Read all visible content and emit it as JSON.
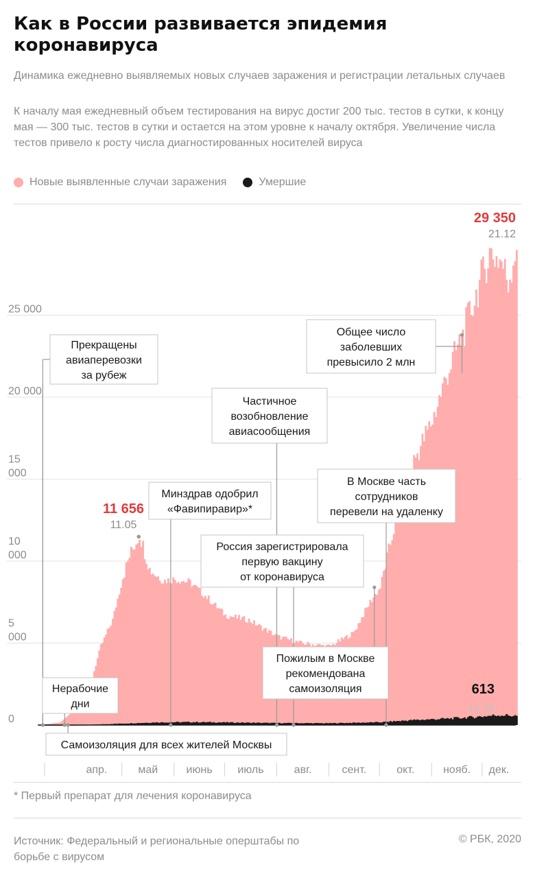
{
  "header": {
    "title": "Как в России развивается эпидемия коронавируса",
    "subtitle": "Динамика ежедневно выявляемых новых случаев заражения и регистрации летальных случаев",
    "description": "К началу мая ежедневный объем тестирования на вирус достиг 200 тыс. тестов в сутки, к концу мая — 300 тыс. тестов в сутки и остается на этом уровне к началу октября. Увеличение числа тестов привело к росту числа диагностированных носителей вируса"
  },
  "legend": {
    "cases": {
      "label": "Новые выявленные случаи заражения",
      "color": "#ffadad"
    },
    "deaths": {
      "label": "Умершие",
      "color": "#1a1a1a"
    }
  },
  "chart_data": {
    "type": "bar",
    "x_start": "2020-03-12",
    "x_end": "2020-12-21",
    "ylim": [
      0,
      29500
    ],
    "grid": true,
    "months": [
      "апр.",
      "май",
      "июнь",
      "июль",
      "авг.",
      "сент.",
      "окт.",
      "нояб.",
      "дек."
    ],
    "y_ticks": [
      {
        "value": 0,
        "label": "0"
      },
      {
        "value": 5000,
        "label": "5 000"
      },
      {
        "value": 10000,
        "label": "10 000"
      },
      {
        "value": 15000,
        "label": "15 000"
      },
      {
        "value": 20000,
        "label": "20 000"
      },
      {
        "value": 25000,
        "label": "25 000"
      }
    ],
    "series": [
      {
        "name": "Новые выявленные случаи заражения",
        "color": "#ffadad",
        "points": [
          [
            "2020-03-12",
            0
          ],
          [
            "2020-03-25",
            160
          ],
          [
            "2020-04-01",
            800
          ],
          [
            "2020-04-10",
            1800
          ],
          [
            "2020-04-18",
            4800
          ],
          [
            "2020-04-25",
            6400
          ],
          [
            "2020-05-01",
            9000
          ],
          [
            "2020-05-05",
            10300
          ],
          [
            "2020-05-11",
            11656
          ],
          [
            "2020-05-17",
            9500
          ],
          [
            "2020-05-25",
            8800
          ],
          [
            "2020-06-01",
            8900
          ],
          [
            "2020-06-10",
            8700
          ],
          [
            "2020-06-20",
            7800
          ],
          [
            "2020-07-01",
            6700
          ],
          [
            "2020-07-15",
            6400
          ],
          [
            "2020-08-01",
            5400
          ],
          [
            "2020-08-15",
            5000
          ],
          [
            "2020-09-01",
            4800
          ],
          [
            "2020-09-15",
            5600
          ],
          [
            "2020-09-25",
            7500
          ],
          [
            "2020-10-01",
            8400
          ],
          [
            "2020-10-10",
            12400
          ],
          [
            "2020-10-20",
            15900
          ],
          [
            "2020-11-01",
            18600
          ],
          [
            "2020-11-10",
            21500
          ],
          [
            "2020-11-19",
            23800
          ],
          [
            "2020-11-28",
            26600
          ],
          [
            "2020-12-05",
            28800
          ],
          [
            "2020-12-12",
            28300
          ],
          [
            "2020-12-16",
            27000
          ],
          [
            "2020-12-21",
            29350
          ]
        ]
      },
      {
        "name": "Умершие",
        "color": "#1a1a1a",
        "points": [
          [
            "2020-03-12",
            0
          ],
          [
            "2020-04-10",
            15
          ],
          [
            "2020-05-01",
            90
          ],
          [
            "2020-05-20",
            160
          ],
          [
            "2020-06-10",
            180
          ],
          [
            "2020-07-01",
            160
          ],
          [
            "2020-08-01",
            120
          ],
          [
            "2020-09-01",
            110
          ],
          [
            "2020-10-01",
            170
          ],
          [
            "2020-10-20",
            300
          ],
          [
            "2020-11-10",
            390
          ],
          [
            "2020-11-25",
            480
          ],
          [
            "2020-12-11",
            613
          ],
          [
            "2020-12-21",
            560
          ]
        ]
      }
    ],
    "peaks": [
      {
        "value": "11 656",
        "date": "11.05",
        "color": "#e33a3a",
        "at": "2020-05-11",
        "y": 11656
      },
      {
        "value": "29 350",
        "date": "21.12",
        "color": "#e33a3a",
        "at": "2020-12-21",
        "y": 29350
      },
      {
        "value": "613",
        "date": "11.12",
        "color": "#111111",
        "at": "2020-12-11",
        "y": 613
      }
    ],
    "annotations": [
      {
        "at": "2020-03-15",
        "y": 0,
        "lines": [
          "Прекращены",
          "авиаперевозки",
          "за рубеж"
        ]
      },
      {
        "at": "2020-03-28",
        "y": 0,
        "lines": [
          "Нерабочие",
          "дни"
        ]
      },
      {
        "at": "2020-03-30",
        "y": 0,
        "lines": [
          "Самоизоляция для всех жителей Москвы"
        ]
      },
      {
        "at": "2020-05-30",
        "y": 0,
        "lines": [
          "Минздрав одобрил",
          "«Фавипиравир»*"
        ]
      },
      {
        "at": "2020-08-01",
        "y": 0,
        "lines": [
          "Частичное",
          "возобновление",
          "авиасообщения"
        ]
      },
      {
        "at": "2020-08-11",
        "y": 0,
        "lines": [
          "Россия зарегистрировала",
          "первую вакцину",
          "от коронавируса"
        ]
      },
      {
        "at": "2020-09-28",
        "y": 8400,
        "lines": [
          "Пожилым в Москве",
          "рекомендована",
          "самоизоляция"
        ]
      },
      {
        "at": "2020-10-05",
        "y": 0,
        "lines": [
          "В Москве часть",
          "сотрудников",
          "перевели на удаленку"
        ]
      },
      {
        "at": "2020-11-19",
        "y": 23800,
        "lines": [
          "Общее число",
          "заболевших",
          "превысило 2 млн"
        ]
      }
    ]
  },
  "footer": {
    "footnote": "* Первый препарат для лечения коронавируса",
    "source": "Источник: Федеральный и региональные оперштабы по борьбе с вирусом",
    "copyright": "© РБК, 2020"
  }
}
